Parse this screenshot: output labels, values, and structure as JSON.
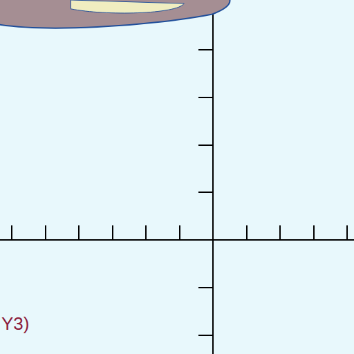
{
  "chart_data": {
    "type": "line",
    "xlim": [
      -6.35,
      4.2
    ],
    "xticks": [
      -6,
      -5,
      -4,
      -3,
      -2,
      -1,
      0,
      1,
      2,
      3,
      4
    ],
    "ylim": [
      -2.4,
      5.05
    ],
    "yticks": [
      -2,
      -1,
      0,
      1,
      2,
      3,
      4,
      5
    ],
    "grid": false,
    "tick_labels": false,
    "annotations": [
      {
        "text": "Y3)"
      }
    ]
  }
}
